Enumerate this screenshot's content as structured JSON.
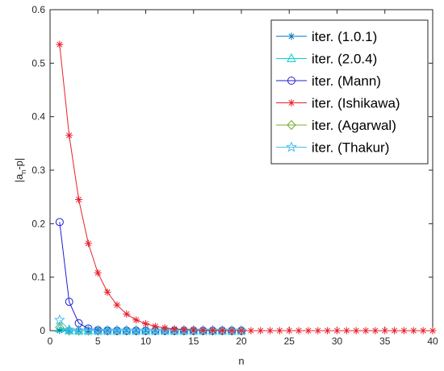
{
  "chart_data": {
    "type": "line",
    "xlabel": "n",
    "ylabel_main": "|a",
    "ylabel_sub": "n",
    "ylabel_tail": "-p|",
    "xlim": [
      0,
      40
    ],
    "ylim": [
      0,
      0.6
    ],
    "x_ticks": [
      "0",
      "5",
      "10",
      "15",
      "20",
      "25",
      "30",
      "35",
      "40"
    ],
    "y_ticks": [
      "0",
      "0.1",
      "0.2",
      "0.3",
      "0.4",
      "0.5",
      "0.6"
    ],
    "grid": false,
    "legend_position": "top-right",
    "series": [
      {
        "name": "iter. (1.0.1)",
        "color": "#0072BD",
        "marker": "asterisk",
        "x": [
          1,
          2,
          3,
          4,
          5,
          6,
          7,
          8,
          9,
          10,
          11,
          12,
          13,
          14,
          15,
          16,
          17,
          18,
          19,
          20
        ],
        "y": [
          0.0003,
          0,
          0,
          0,
          0,
          0,
          0,
          0,
          0,
          0,
          0,
          0,
          0,
          0,
          0,
          0,
          0,
          0,
          0,
          0
        ]
      },
      {
        "name": "iter. (2.0.4)",
        "color": "#00D8D8",
        "marker": "triangle",
        "x": [
          1,
          2,
          3,
          4,
          5,
          6,
          7,
          8,
          9,
          10,
          11,
          12,
          13,
          14,
          15,
          16,
          17,
          18,
          19,
          20
        ],
        "y": [
          0.004,
          0.0002,
          0,
          0,
          0,
          0,
          0,
          0,
          0,
          0,
          0,
          0,
          0,
          0,
          0,
          0,
          0,
          0,
          0,
          0
        ]
      },
      {
        "name": "iter. (Mann)",
        "color": "#1F1FD6",
        "marker": "circle",
        "x": [
          1,
          2,
          3,
          4,
          5,
          6,
          7,
          8,
          9,
          10,
          11,
          12,
          13,
          14,
          15,
          16,
          17,
          18,
          19,
          20
        ],
        "y": [
          0.203,
          0.054,
          0.014,
          0.004,
          0.001,
          0.0003,
          0,
          0,
          0,
          0,
          0,
          0,
          0,
          0,
          0,
          0,
          0,
          0,
          0,
          0
        ]
      },
      {
        "name": "iter. (Ishikawa)",
        "color": "#E8202A",
        "marker": "asterisk",
        "x": [
          1,
          2,
          3,
          4,
          5,
          6,
          7,
          8,
          9,
          10,
          11,
          12,
          13,
          14,
          15,
          16,
          17,
          18,
          19,
          20,
          21,
          22,
          23,
          24,
          25,
          26,
          27,
          28,
          29,
          30,
          31,
          32,
          33,
          34,
          35,
          36,
          37,
          38,
          39,
          40
        ],
        "y": [
          0.535,
          0.365,
          0.245,
          0.163,
          0.108,
          0.072,
          0.048,
          0.031,
          0.02,
          0.013,
          0.008,
          0.005,
          0.003,
          0.002,
          0.0013,
          0.0008,
          0.0005,
          0.0003,
          0.0002,
          0.0001,
          0,
          0,
          0,
          0,
          0,
          0,
          0,
          0,
          0,
          0,
          0,
          0,
          0,
          0,
          0,
          0,
          0,
          0,
          0,
          0
        ]
      },
      {
        "name": "iter. (Agarwal)",
        "color": "#77AC30",
        "marker": "diamond",
        "x": [
          1,
          2,
          3,
          4,
          5,
          6,
          7,
          8,
          9,
          10,
          11,
          12,
          13,
          14,
          15,
          16,
          17,
          18,
          19,
          20
        ],
        "y": [
          0.006,
          0.0004,
          0,
          0,
          0,
          0,
          0,
          0,
          0,
          0,
          0,
          0,
          0,
          0,
          0,
          0,
          0,
          0,
          0,
          0
        ]
      },
      {
        "name": "iter. (Thakur)",
        "color": "#4DBEEE",
        "marker": "star",
        "x": [
          1,
          2,
          3,
          4,
          5,
          6,
          7,
          8,
          9,
          10,
          11,
          12,
          13,
          14,
          15,
          16,
          17,
          18,
          19,
          20
        ],
        "y": [
          0.02,
          0.0015,
          0.0001,
          0,
          0,
          0,
          0,
          0,
          0,
          0,
          0,
          0,
          0,
          0,
          0,
          0,
          0,
          0,
          0,
          0
        ]
      }
    ]
  }
}
